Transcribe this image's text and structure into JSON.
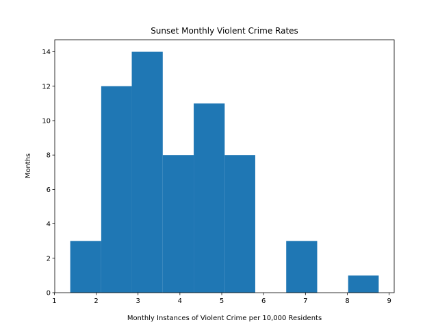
{
  "chart_data": {
    "type": "histogram",
    "title": "Sunset Monthly Violent Crime Rates",
    "xlabel": "Monthly Instances of Violent Crime per 10,000 Residents",
    "ylabel": "Months",
    "bins": [
      1.38,
      2.12,
      2.85,
      3.59,
      4.33,
      5.07,
      5.8,
      6.54,
      7.28,
      8.02,
      8.75
    ],
    "values": [
      3,
      12,
      14,
      8,
      11,
      8,
      0,
      3,
      0,
      1
    ],
    "color": "#1f77b4",
    "xlim": [
      1.01,
      9.12
    ],
    "xticks": [
      1,
      2,
      3,
      4,
      5,
      6,
      7,
      8,
      9
    ],
    "ylim": [
      0,
      14.7
    ],
    "yticks": [
      0,
      2,
      4,
      6,
      8,
      10,
      12,
      14
    ]
  }
}
